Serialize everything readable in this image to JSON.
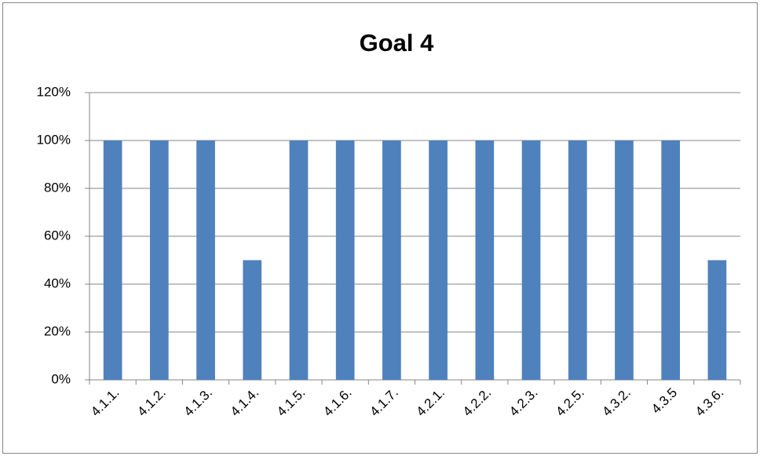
{
  "chart_data": {
    "type": "bar",
    "title": "Goal 4",
    "categories": [
      "4.1.1.",
      "4.1.2.",
      "4.1.3.",
      "4.1.4.",
      "4.1.5.",
      "4.1.6.",
      "4.1.7.",
      "4.2.1.",
      "4.2.2.",
      "4.2.3.",
      "4.2.5.",
      "4.3.2.",
      "4.3.5",
      "4.3.6."
    ],
    "values": [
      100,
      100,
      100,
      50,
      100,
      100,
      100,
      100,
      100,
      100,
      100,
      100,
      100,
      50
    ],
    "color": "#4f81bd",
    "ylim": [
      0,
      120
    ],
    "yticks": [
      {
        "value": 0,
        "label": "0%"
      },
      {
        "value": 20,
        "label": "20%"
      },
      {
        "value": 40,
        "label": "40%"
      },
      {
        "value": 60,
        "label": "60%"
      },
      {
        "value": 80,
        "label": "80%"
      },
      {
        "value": 100,
        "label": "100%"
      },
      {
        "value": 120,
        "label": "120%"
      }
    ],
    "grid": true
  }
}
